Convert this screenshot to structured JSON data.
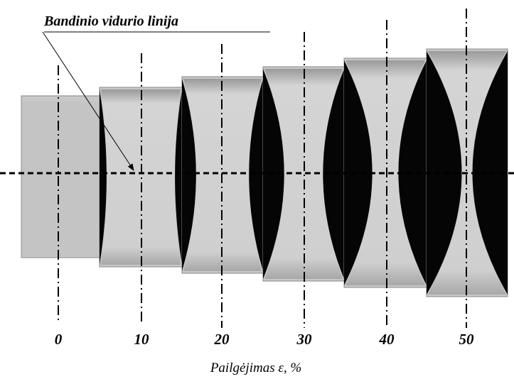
{
  "title": "Bandinio vidurio linija",
  "specimens": [
    {
      "label": "0"
    },
    {
      "label": "10"
    },
    {
      "label": "20"
    },
    {
      "label": "30"
    },
    {
      "label": "40"
    },
    {
      "label": "50"
    }
  ],
  "x_label": "Pailgėjimas ε, %"
}
